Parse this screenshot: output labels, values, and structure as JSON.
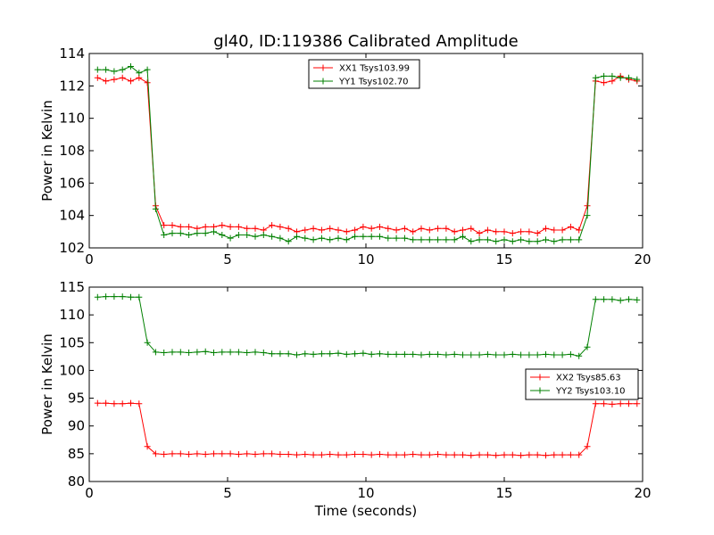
{
  "chart_data": [
    {
      "type": "line",
      "title": "gl40, ID:119386 Calibrated Amplitude",
      "xlabel": "",
      "ylabel": "Power in Kelvin",
      "xlim": [
        0,
        20
      ],
      "ylim": [
        102,
        114
      ],
      "xticks": [
        0,
        5,
        10,
        15,
        20
      ],
      "yticks": [
        102,
        104,
        106,
        108,
        110,
        112,
        114
      ],
      "grid": false,
      "legend_position": "top-center",
      "x": [
        0.3,
        0.6,
        0.9,
        1.2,
        1.5,
        1.8,
        2.1,
        2.4,
        2.7,
        3.0,
        3.3,
        3.6,
        3.9,
        4.2,
        4.5,
        4.8,
        5.1,
        5.4,
        5.7,
        6.0,
        6.3,
        6.6,
        6.9,
        7.2,
        7.5,
        7.8,
        8.1,
        8.4,
        8.7,
        9.0,
        9.3,
        9.6,
        9.9,
        10.2,
        10.5,
        10.8,
        11.1,
        11.4,
        11.7,
        12.0,
        12.3,
        12.6,
        12.9,
        13.2,
        13.5,
        13.8,
        14.1,
        14.4,
        14.7,
        15.0,
        15.3,
        15.6,
        15.9,
        16.2,
        16.5,
        16.8,
        17.1,
        17.4,
        17.7,
        18.0,
        18.3,
        18.6,
        18.9,
        19.2,
        19.5,
        19.8
      ],
      "series": [
        {
          "name": "XX1 Tsys103.99",
          "color": "#ff0000",
          "values": [
            112.5,
            112.3,
            112.4,
            112.5,
            112.3,
            112.5,
            112.2,
            104.6,
            103.4,
            103.4,
            103.3,
            103.3,
            103.2,
            103.3,
            103.3,
            103.4,
            103.3,
            103.3,
            103.2,
            103.2,
            103.1,
            103.4,
            103.3,
            103.2,
            103.0,
            103.1,
            103.2,
            103.1,
            103.2,
            103.1,
            103.0,
            103.1,
            103.3,
            103.2,
            103.3,
            103.2,
            103.1,
            103.2,
            103.0,
            103.2,
            103.1,
            103.2,
            103.2,
            103.0,
            103.1,
            103.2,
            102.9,
            103.1,
            103.0,
            103.0,
            102.9,
            103.0,
            103.0,
            102.9,
            103.2,
            103.1,
            103.1,
            103.3,
            103.1,
            104.6,
            112.3,
            112.2,
            112.3,
            112.6,
            112.4,
            112.3
          ]
        },
        {
          "name": "YY1 Tsys102.70",
          "color": "#008000",
          "values": [
            113.0,
            113.0,
            112.9,
            113.0,
            113.2,
            112.8,
            113.0,
            104.4,
            102.8,
            102.9,
            102.9,
            102.8,
            102.9,
            102.9,
            103.0,
            102.8,
            102.6,
            102.8,
            102.8,
            102.7,
            102.8,
            102.7,
            102.6,
            102.4,
            102.7,
            102.6,
            102.5,
            102.6,
            102.5,
            102.6,
            102.5,
            102.7,
            102.7,
            102.7,
            102.7,
            102.6,
            102.6,
            102.6,
            102.5,
            102.5,
            102.5,
            102.5,
            102.5,
            102.5,
            102.7,
            102.4,
            102.5,
            102.5,
            102.4,
            102.5,
            102.4,
            102.5,
            102.4,
            102.4,
            102.5,
            102.4,
            102.5,
            102.5,
            102.5,
            104.0,
            112.5,
            112.6,
            112.6,
            112.5,
            112.5,
            112.4
          ]
        }
      ]
    },
    {
      "type": "line",
      "title": "",
      "xlabel": "Time (seconds)",
      "ylabel": "Power in Kelvin",
      "xlim": [
        0,
        20
      ],
      "ylim": [
        80,
        115
      ],
      "xticks": [
        0,
        5,
        10,
        15,
        20
      ],
      "yticks": [
        80,
        85,
        90,
        95,
        100,
        105,
        110,
        115
      ],
      "grid": false,
      "legend_position": "center-right",
      "x": [
        0.3,
        0.6,
        0.9,
        1.2,
        1.5,
        1.8,
        2.1,
        2.4,
        2.7,
        3.0,
        3.3,
        3.6,
        3.9,
        4.2,
        4.5,
        4.8,
        5.1,
        5.4,
        5.7,
        6.0,
        6.3,
        6.6,
        6.9,
        7.2,
        7.5,
        7.8,
        8.1,
        8.4,
        8.7,
        9.0,
        9.3,
        9.6,
        9.9,
        10.2,
        10.5,
        10.8,
        11.1,
        11.4,
        11.7,
        12.0,
        12.3,
        12.6,
        12.9,
        13.2,
        13.5,
        13.8,
        14.1,
        14.4,
        14.7,
        15.0,
        15.3,
        15.6,
        15.9,
        16.2,
        16.5,
        16.8,
        17.1,
        17.4,
        17.7,
        18.0,
        18.3,
        18.6,
        18.9,
        19.2,
        19.5,
        19.8
      ],
      "series": [
        {
          "name": "XX2 Tsys85.63",
          "color": "#ff0000",
          "values": [
            94.1,
            94.1,
            94.0,
            94.0,
            94.1,
            94.0,
            86.3,
            85.0,
            84.9,
            85.0,
            85.0,
            84.9,
            85.0,
            84.9,
            85.0,
            85.0,
            85.0,
            84.9,
            85.0,
            84.9,
            85.0,
            85.0,
            84.9,
            84.9,
            84.8,
            84.9,
            84.8,
            84.8,
            84.9,
            84.8,
            84.8,
            84.9,
            84.9,
            84.8,
            84.9,
            84.8,
            84.8,
            84.8,
            84.9,
            84.8,
            84.8,
            84.9,
            84.8,
            84.8,
            84.8,
            84.7,
            84.8,
            84.8,
            84.7,
            84.8,
            84.8,
            84.7,
            84.8,
            84.8,
            84.7,
            84.8,
            84.8,
            84.8,
            84.8,
            86.3,
            94.0,
            94.0,
            93.9,
            94.0,
            94.0,
            94.0
          ]
        },
        {
          "name": "YY2 Tsys103.10",
          "color": "#008000",
          "values": [
            113.2,
            113.3,
            113.3,
            113.3,
            113.2,
            113.2,
            105.0,
            103.3,
            103.2,
            103.3,
            103.3,
            103.2,
            103.3,
            103.4,
            103.2,
            103.3,
            103.3,
            103.3,
            103.2,
            103.3,
            103.2,
            103.0,
            103.0,
            103.0,
            102.8,
            103.0,
            102.9,
            103.0,
            103.0,
            103.1,
            102.9,
            103.0,
            103.1,
            102.9,
            103.0,
            102.9,
            102.9,
            102.9,
            102.9,
            102.8,
            102.9,
            102.9,
            102.8,
            102.9,
            102.8,
            102.8,
            102.8,
            102.9,
            102.8,
            102.8,
            102.9,
            102.8,
            102.8,
            102.8,
            102.9,
            102.8,
            102.8,
            102.9,
            102.6,
            104.2,
            112.8,
            112.8,
            112.8,
            112.6,
            112.8,
            112.7
          ]
        }
      ]
    }
  ]
}
